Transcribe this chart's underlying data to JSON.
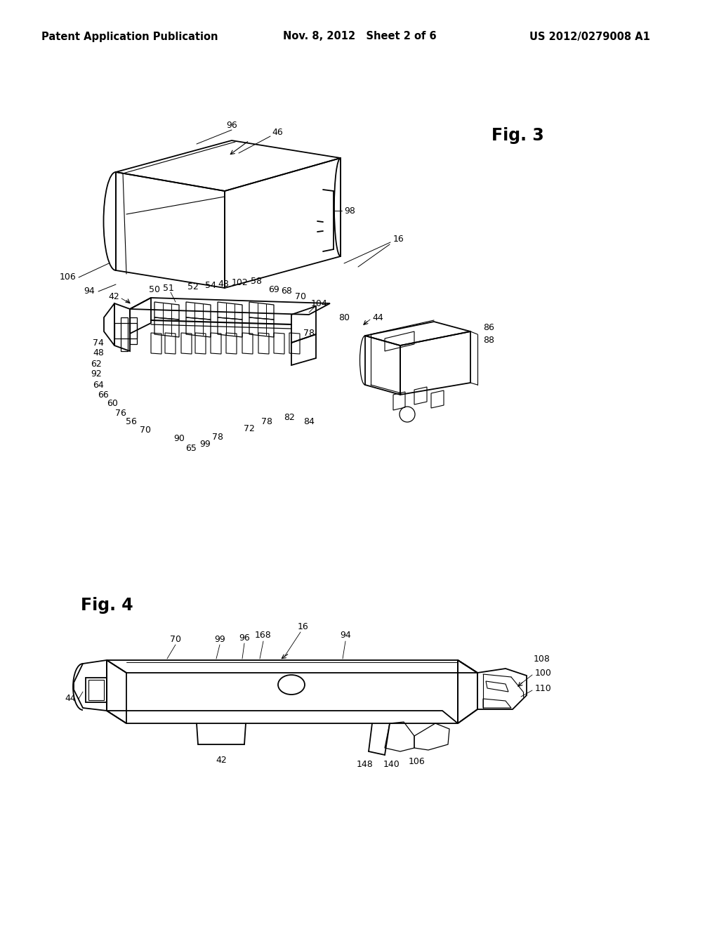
{
  "background_color": "#ffffff",
  "header_left": "Patent Application Publication",
  "header_center": "Nov. 8, 2012   Sheet 2 of 6",
  "header_right": "US 2012/0279008 A1",
  "header_fontsize": 10.5,
  "fig3_label": "Fig. 3",
  "fig4_label": "Fig. 4",
  "fig_label_fontsize": 17,
  "ref_fontsize": 9,
  "line_color": "#000000",
  "line_width": 1.3
}
